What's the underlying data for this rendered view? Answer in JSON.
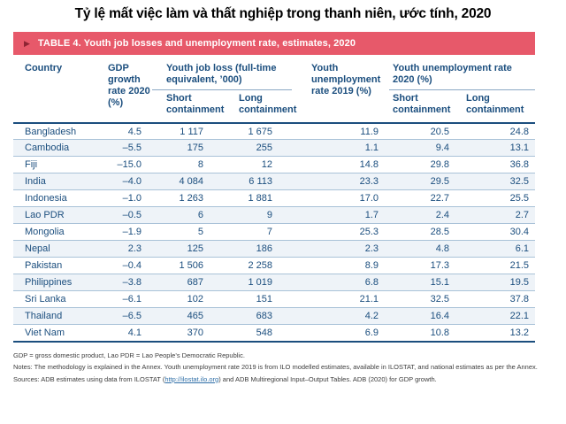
{
  "title": "Tỷ lệ mất việc làm và thất nghiệp trong thanh niên, ước tính, 2020",
  "banner": {
    "marker": "▶",
    "label": "TABLE 4. Youth job losses and unemployment rate, estimates, 2020"
  },
  "table": {
    "header": {
      "country": "Country",
      "gdp": "GDP growth rate 2020 (%)",
      "job_loss_group": "Youth job loss (full-time equivalent, ’000)",
      "unemployment_2019": "Youth unemployment rate 2019 (%)",
      "unemployment_2020_group": "Youth unemployment rate 2020 (%)",
      "short_containment": "Short containment",
      "long_containment": "Long containment"
    },
    "rows": [
      {
        "country": "Bangladesh",
        "gdp": "4.5",
        "jl_short": "1 117",
        "jl_long": "1 675",
        "ur2019": "11.9",
        "ur2020_short": "20.5",
        "ur2020_long": "24.8"
      },
      {
        "country": "Cambodia",
        "gdp": "–5.5",
        "jl_short": "175",
        "jl_long": "255",
        "ur2019": "1.1",
        "ur2020_short": "9.4",
        "ur2020_long": "13.1"
      },
      {
        "country": "Fiji",
        "gdp": "–15.0",
        "jl_short": "8",
        "jl_long": "12",
        "ur2019": "14.8",
        "ur2020_short": "29.8",
        "ur2020_long": "36.8"
      },
      {
        "country": "India",
        "gdp": "–4.0",
        "jl_short": "4 084",
        "jl_long": "6 113",
        "ur2019": "23.3",
        "ur2020_short": "29.5",
        "ur2020_long": "32.5"
      },
      {
        "country": "Indonesia",
        "gdp": "–1.0",
        "jl_short": "1 263",
        "jl_long": "1 881",
        "ur2019": "17.0",
        "ur2020_short": "22.7",
        "ur2020_long": "25.5"
      },
      {
        "country": "Lao PDR",
        "gdp": "–0.5",
        "jl_short": "6",
        "jl_long": "9",
        "ur2019": "1.7",
        "ur2020_short": "2.4",
        "ur2020_long": "2.7"
      },
      {
        "country": "Mongolia",
        "gdp": "–1.9",
        "jl_short": "5",
        "jl_long": "7",
        "ur2019": "25.3",
        "ur2020_short": "28.5",
        "ur2020_long": "30.4"
      },
      {
        "country": "Nepal",
        "gdp": "2.3",
        "jl_short": "125",
        "jl_long": "186",
        "ur2019": "2.3",
        "ur2020_short": "4.8",
        "ur2020_long": "6.1"
      },
      {
        "country": "Pakistan",
        "gdp": "–0.4",
        "jl_short": "1 506",
        "jl_long": "2 258",
        "ur2019": "8.9",
        "ur2020_short": "17.3",
        "ur2020_long": "21.5"
      },
      {
        "country": "Philippines",
        "gdp": "–3.8",
        "jl_short": "687",
        "jl_long": "1 019",
        "ur2019": "6.8",
        "ur2020_short": "15.1",
        "ur2020_long": "19.5"
      },
      {
        "country": "Sri Lanka",
        "gdp": "–6.1",
        "jl_short": "102",
        "jl_long": "151",
        "ur2019": "21.1",
        "ur2020_short": "32.5",
        "ur2020_long": "37.8"
      },
      {
        "country": "Thailand",
        "gdp": "–6.5",
        "jl_short": "465",
        "jl_long": "683",
        "ur2019": "4.2",
        "ur2020_short": "16.4",
        "ur2020_long": "22.1"
      },
      {
        "country": "Viet Nam",
        "gdp": "4.1",
        "jl_short": "370",
        "jl_long": "548",
        "ur2019": "6.9",
        "ur2020_short": "10.8",
        "ur2020_long": "13.2"
      }
    ]
  },
  "footnotes": {
    "abbreviations": "GDP = gross domestic product, Lao PDR = Lao People’s Democratic Republic.",
    "notes": "Notes: The methodology is explained in the Annex. Youth unemployment rate 2019 is from ILO modelled estimates, available in ILOSTAT, and national estimates as per the Annex.",
    "sources_prefix": "Sources: ADB estimates using data from ILOSTAT (",
    "sources_link": "http://ilostat.ilo.org",
    "sources_suffix": ") and ADB Multiregional Input–Output Tables. ADB (2020) for GDP growth."
  },
  "colors": {
    "banner_background": "#e7596a",
    "banner_marker": "#8e2433",
    "table_text": "#1b4e7e",
    "row_stripe": "#eef3f8",
    "thick_rule": "#1b4e7e",
    "thin_rule": "#a9c2d8",
    "link": "#2f6fa7"
  },
  "chart_data": {
    "type": "table",
    "title": "TABLE 4. Youth job losses and unemployment rate, estimates, 2020",
    "columns": [
      "Country",
      "GDP growth rate 2020 (%)",
      "Youth job loss ('000), Short containment",
      "Youth job loss ('000), Long containment",
      "Youth unemployment rate 2019 (%)",
      "Youth unemployment rate 2020 (%), Short containment",
      "Youth unemployment rate 2020 (%), Long containment"
    ],
    "rows": [
      [
        "Bangladesh",
        4.5,
        1117,
        1675,
        11.9,
        20.5,
        24.8
      ],
      [
        "Cambodia",
        -5.5,
        175,
        255,
        1.1,
        9.4,
        13.1
      ],
      [
        "Fiji",
        -15.0,
        8,
        12,
        14.8,
        29.8,
        36.8
      ],
      [
        "India",
        -4.0,
        4084,
        6113,
        23.3,
        29.5,
        32.5
      ],
      [
        "Indonesia",
        -1.0,
        1263,
        1881,
        17.0,
        22.7,
        25.5
      ],
      [
        "Lao PDR",
        -0.5,
        6,
        9,
        1.7,
        2.4,
        2.7
      ],
      [
        "Mongolia",
        -1.9,
        5,
        7,
        25.3,
        28.5,
        30.4
      ],
      [
        "Nepal",
        2.3,
        125,
        186,
        2.3,
        4.8,
        6.1
      ],
      [
        "Pakistan",
        -0.4,
        1506,
        2258,
        8.9,
        17.3,
        21.5
      ],
      [
        "Philippines",
        -3.8,
        687,
        1019,
        6.8,
        15.1,
        19.5
      ],
      [
        "Sri Lanka",
        -6.1,
        102,
        151,
        21.1,
        32.5,
        37.8
      ],
      [
        "Thailand",
        -6.5,
        465,
        683,
        4.2,
        16.4,
        22.1
      ],
      [
        "Viet Nam",
        4.1,
        370,
        548,
        6.9,
        10.8,
        13.2
      ]
    ]
  }
}
